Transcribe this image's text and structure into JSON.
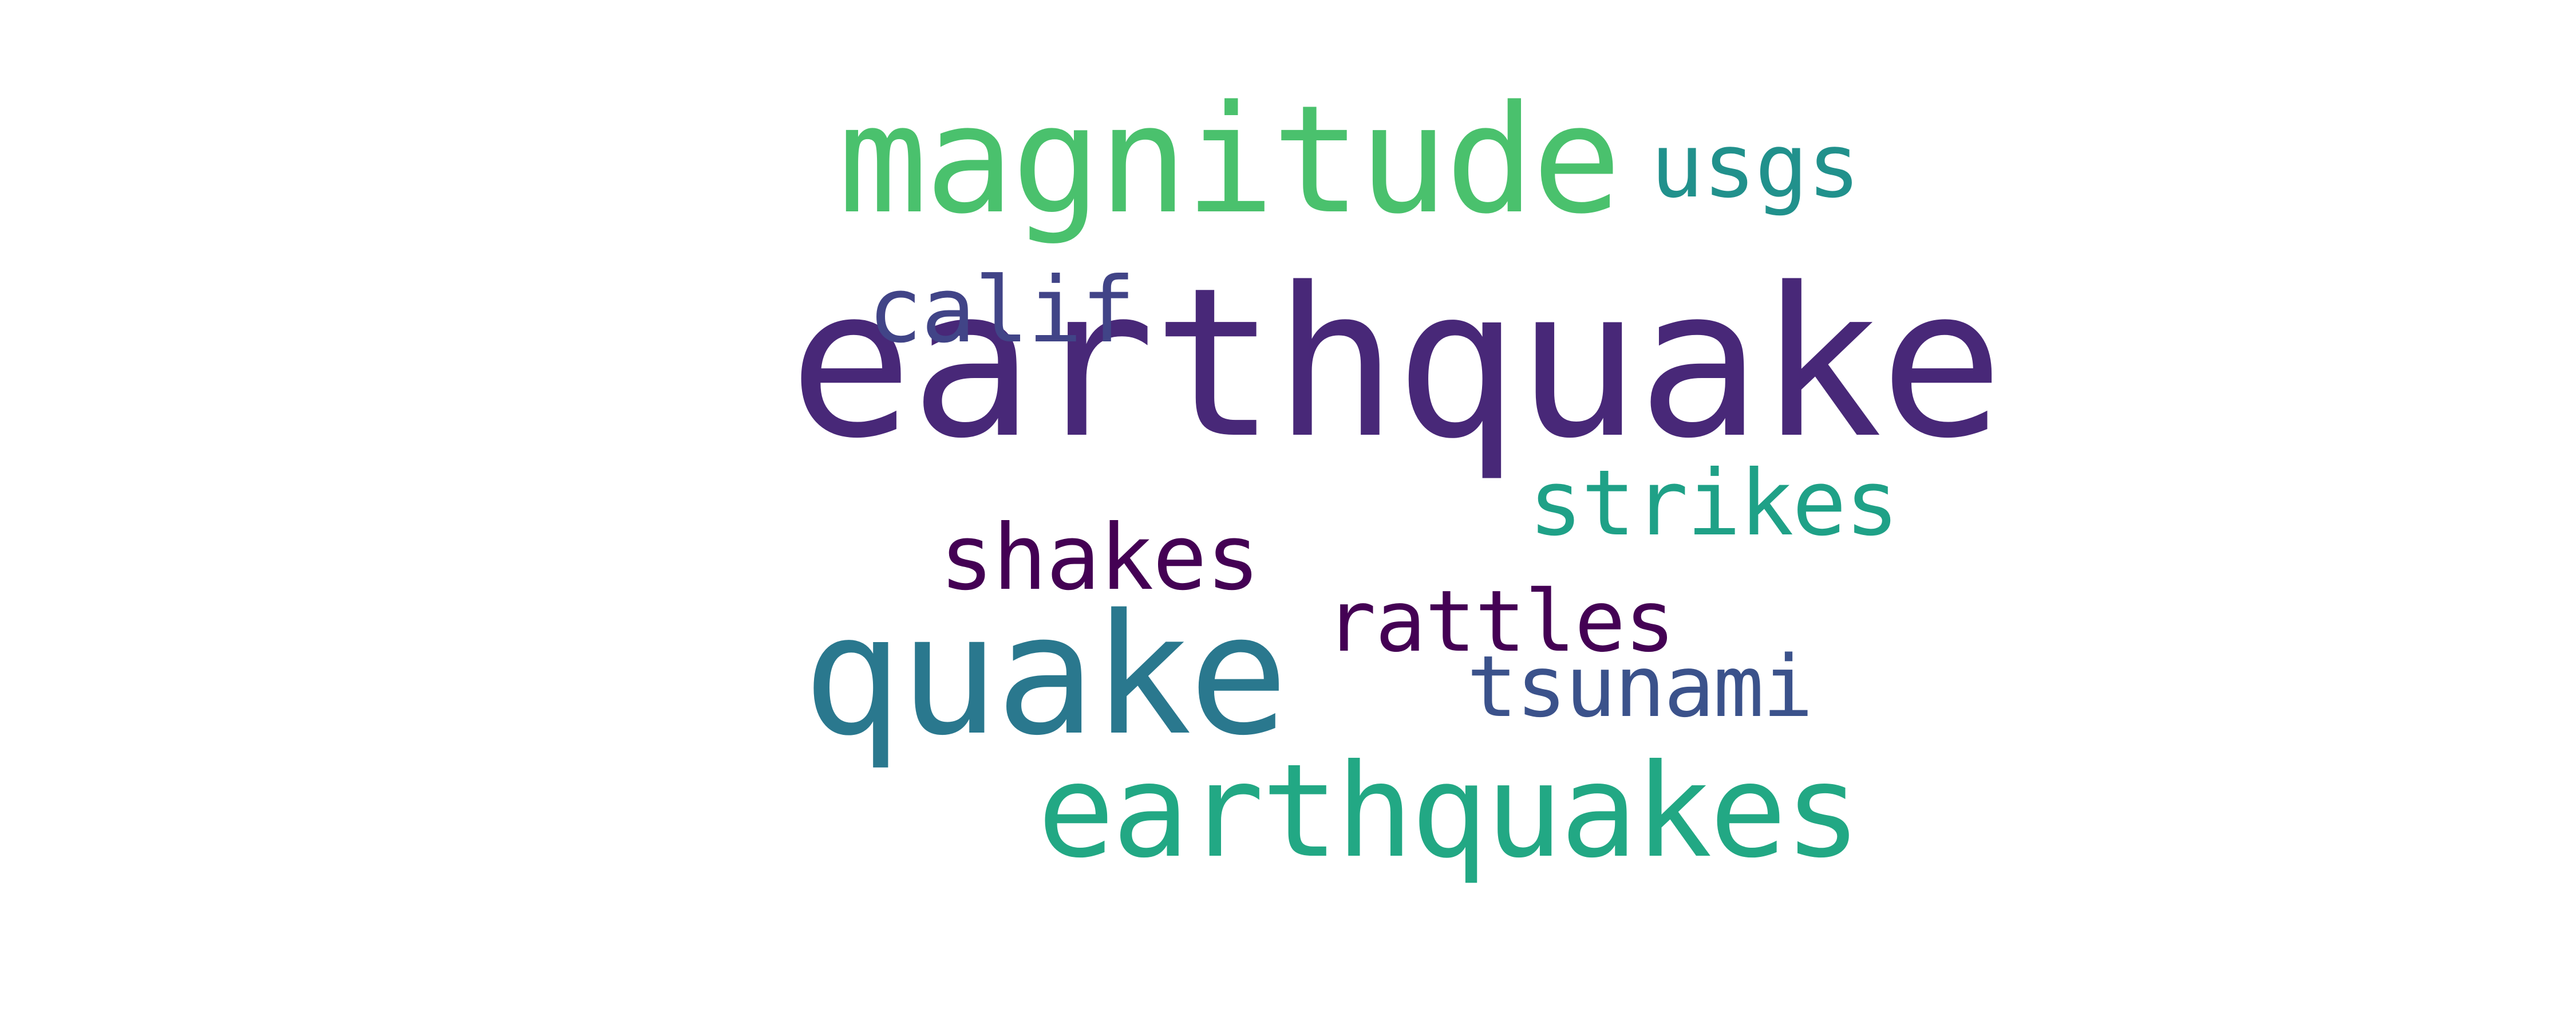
{
  "wordcloud": {
    "words": [
      {
        "id": "earthquake",
        "text": "earthquake",
        "color": "#482878"
      },
      {
        "id": "magnitude",
        "text": "magnitude",
        "color": "#4AC16D"
      },
      {
        "id": "quake",
        "text": "quake",
        "color": "#2A788E"
      },
      {
        "id": "earthquakes",
        "text": "earthquakes",
        "color": "#22A884"
      },
      {
        "id": "usgs",
        "text": "usgs",
        "color": "#21918C"
      },
      {
        "id": "calif",
        "text": "calif",
        "color": "#414487"
      },
      {
        "id": "strikes",
        "text": "strikes",
        "color": "#1FA187"
      },
      {
        "id": "shakes",
        "text": "shakes",
        "color": "#440154"
      },
      {
        "id": "rattles",
        "text": "rattles",
        "color": "#440154"
      },
      {
        "id": "tsunami",
        "text": "tsunami",
        "color": "#3B528B"
      }
    ]
  }
}
